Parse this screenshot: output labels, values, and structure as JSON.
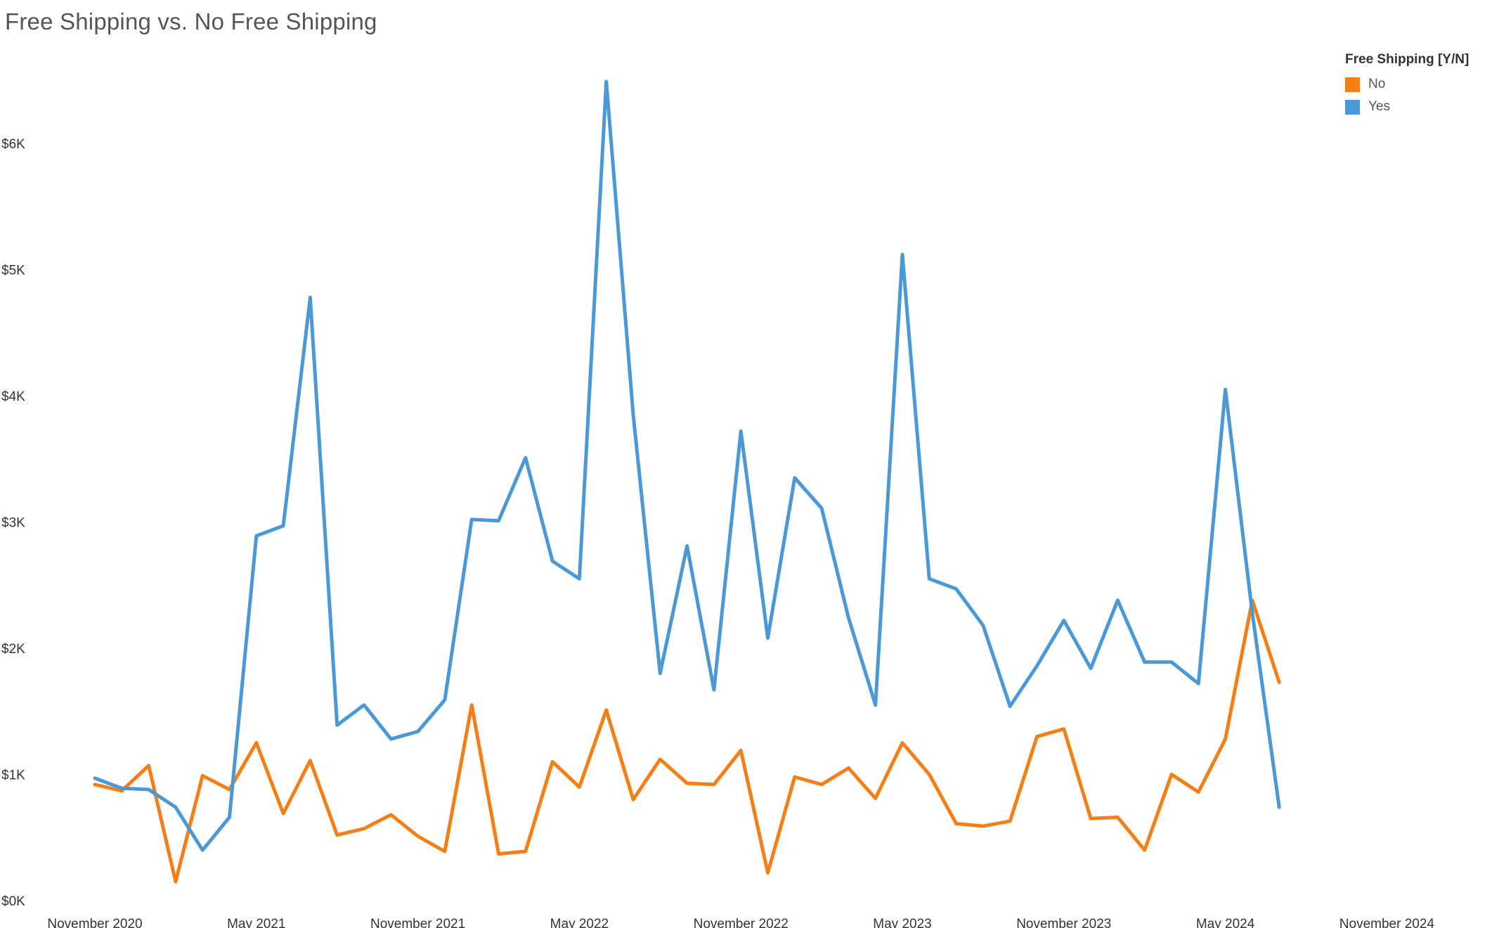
{
  "chart_data": {
    "type": "line",
    "title": "Free Shipping vs. No Free Shipping",
    "xlabel": "",
    "ylabel": "",
    "x_start": "2020-11",
    "x_ticks": [
      "November 2020",
      "May 2021",
      "November 2021",
      "May 2022",
      "November 2022",
      "May 2023",
      "November 2023",
      "May 2024",
      "November 2024"
    ],
    "y_ticks": [
      "$0K",
      "$1K",
      "$2K",
      "$3K",
      "$4K",
      "$5K",
      "$6K"
    ],
    "ylim": [
      0,
      7000
    ],
    "grid": false,
    "legend_title": "Free Shipping [Y/N]",
    "legend_position": "top-right",
    "series": [
      {
        "name": "No",
        "color": "#F57F17",
        "values": [
          920,
          870,
          1070,
          150,
          990,
          880,
          1250,
          690,
          1110,
          520,
          570,
          680,
          510,
          390,
          1550,
          370,
          390,
          1100,
          900,
          1510,
          800,
          1120,
          930,
          920,
          1190,
          220,
          980,
          920,
          1050,
          810,
          1250,
          1000,
          610,
          590,
          630,
          1300,
          1360,
          650,
          660,
          400,
          1000,
          860,
          1280,
          2380,
          1730
        ]
      },
      {
        "name": "Yes",
        "color": "#4A98D6",
        "values": [
          970,
          890,
          880,
          740,
          400,
          660,
          2890,
          2970,
          4780,
          1390,
          1550,
          1280,
          1340,
          1590,
          3020,
          3010,
          3510,
          2690,
          2550,
          6490,
          3850,
          1800,
          2810,
          1670,
          3720,
          2080,
          3350,
          3110,
          2240,
          1550,
          5120,
          2550,
          2470,
          2180,
          1540,
          1860,
          2220,
          1840,
          2380,
          1890,
          1890,
          1720,
          4050,
          2280,
          740
        ]
      }
    ]
  }
}
